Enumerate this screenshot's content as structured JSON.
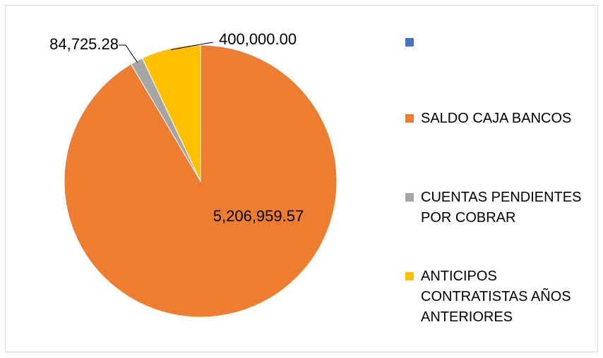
{
  "chart_data": {
    "type": "pie",
    "categories": [
      "",
      "SALDO CAJA BANCOS",
      "CUENTAS PENDIENTES POR COBRAR",
      "ANTICIPOS CONTRATISTAS AÑOS ANTERIORES"
    ],
    "values": [
      0,
      5206959.57,
      84725.28,
      400000.0
    ],
    "data_labels": [
      "",
      "5,206,959.57",
      "84,725.28",
      "400,000.00"
    ],
    "colors": [
      "#4472c4",
      "#ed7d31",
      "#a5a5a5",
      "#ffc000"
    ],
    "title": "",
    "legend_position": "right",
    "legend_lines": [
      [],
      [
        "SALDO CAJA BANCOS"
      ],
      [
        "CUENTAS PENDIENTES",
        "POR COBRAR"
      ],
      [
        "ANTICIPOS",
        "CONTRATISTAS AÑOS",
        "ANTERIORES"
      ]
    ]
  }
}
